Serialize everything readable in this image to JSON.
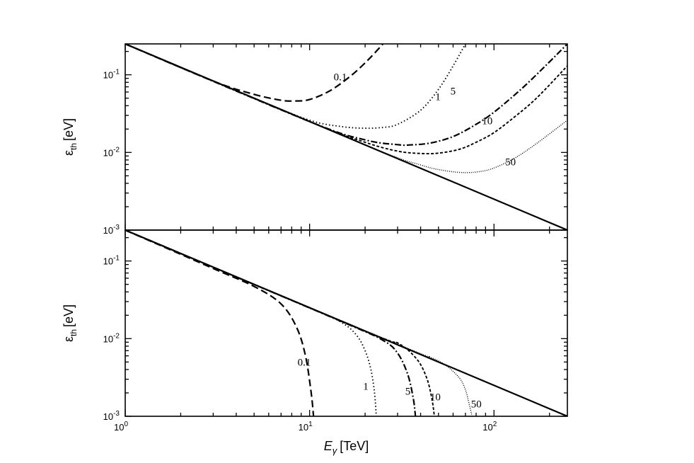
{
  "chart_data": [
    {
      "panel": "top",
      "type": "line",
      "xscale": "log",
      "yscale": "log",
      "xlim": [
        1,
        250
      ],
      "ylim": [
        0.001,
        0.25
      ],
      "ylabel_main": "ε",
      "ylabel_sub": "th",
      "ylabel_unit": "[eV]",
      "ytick_labels": [
        {
          "value": 0.001,
          "base": "10",
          "exp": "-3"
        },
        {
          "value": 0.01,
          "base": "10",
          "exp": "-2"
        },
        {
          "value": 0.1,
          "base": "10",
          "exp": "-1"
        }
      ],
      "baseline": {
        "x": [
          1,
          250
        ],
        "y": [
          0.25,
          0.001
        ]
      },
      "series": [
        {
          "name": "0.1",
          "style": "dashed",
          "x": [
            1,
            3,
            5,
            7,
            8.2,
            10,
            13,
            17,
            21,
            25
          ],
          "y": [
            0.25,
            0.083,
            0.056,
            0.047,
            0.046,
            0.048,
            0.063,
            0.1,
            0.16,
            0.25
          ],
          "label_at": [
            13.5,
            0.085
          ]
        },
        {
          "name": "1",
          "style": "dotted",
          "x": [
            1,
            5,
            10,
            15,
            20,
            25,
            30,
            40,
            50,
            60,
            70
          ],
          "y": [
            0.25,
            0.05,
            0.026,
            0.0215,
            0.0205,
            0.021,
            0.023,
            0.035,
            0.065,
            0.13,
            0.25
          ],
          "label_at": [
            48,
            0.047
          ]
        },
        {
          "name": "5",
          "style": "dashdot",
          "x": [
            1,
            10,
            20,
            30,
            35,
            45,
            60,
            80,
            100,
            140,
            190,
            250
          ],
          "y": [
            0.25,
            0.025,
            0.0145,
            0.0126,
            0.0125,
            0.0132,
            0.016,
            0.023,
            0.033,
            0.065,
            0.13,
            0.25
          ],
          "label_at": [
            58,
            0.056
          ]
        },
        {
          "name": "10",
          "style": "short-dashed",
          "x": [
            1,
            10,
            20,
            30,
            40,
            50,
            65,
            80,
            100,
            130,
            170,
            250
          ],
          "y": [
            0.25,
            0.025,
            0.0135,
            0.0104,
            0.0097,
            0.0098,
            0.011,
            0.0135,
            0.018,
            0.029,
            0.05,
            0.13
          ],
          "label_at": [
            86,
            0.023
          ]
        },
        {
          "name": "50",
          "style": "fine-dotted",
          "x": [
            1,
            20,
            40,
            55,
            70,
            85,
            100,
            130,
            170,
            250
          ],
          "y": [
            0.25,
            0.0125,
            0.0069,
            0.0058,
            0.0055,
            0.0057,
            0.0063,
            0.0085,
            0.013,
            0.026
          ],
          "label_at": [
            115,
            0.0068
          ]
        }
      ]
    },
    {
      "panel": "bottom",
      "type": "line",
      "xscale": "log",
      "yscale": "log",
      "xlim": [
        1,
        250
      ],
      "ylim": [
        0.001,
        0.25
      ],
      "xlabel_main": "E",
      "xlabel_sub": "γ",
      "xlabel_unit": "[TeV]",
      "ylabel_main": "ε",
      "ylabel_sub": "th",
      "ylabel_unit": "[eV]",
      "xtick_labels": [
        {
          "value": 1,
          "base": "10",
          "exp": "0"
        },
        {
          "value": 10,
          "base": "10",
          "exp": "1"
        },
        {
          "value": 100,
          "base": "10",
          "exp": "2"
        }
      ],
      "ytick_labels": [
        {
          "value": 0.001,
          "base": "10",
          "exp": "-3"
        },
        {
          "value": 0.01,
          "base": "10",
          "exp": "-2"
        },
        {
          "value": 0.1,
          "base": "10",
          "exp": "-1"
        }
      ],
      "baseline": {
        "x": [
          1,
          250
        ],
        "y": [
          0.25,
          0.001
        ]
      },
      "series": [
        {
          "name": "0.1",
          "style": "dashed",
          "x": [
            1,
            3,
            5,
            7,
            8.5,
            9.5,
            10.2,
            10.5
          ],
          "y": [
            0.25,
            0.08,
            0.047,
            0.028,
            0.014,
            0.006,
            0.002,
            0.001
          ],
          "label_at": [
            8.6,
            0.0045
          ]
        },
        {
          "name": "1",
          "style": "dotted",
          "x": [
            1,
            10,
            15,
            18,
            20,
            21.5,
            22.5,
            23
          ],
          "y": [
            0.25,
            0.025,
            0.016,
            0.011,
            0.007,
            0.004,
            0.002,
            0.001
          ],
          "label_at": [
            19.5,
            0.0022
          ]
        },
        {
          "name": "5",
          "style": "dashdot",
          "x": [
            1,
            15,
            25,
            30,
            34,
            36.5,
            37.5
          ],
          "y": [
            0.25,
            0.0165,
            0.0095,
            0.0065,
            0.0035,
            0.0017,
            0.001
          ],
          "label_at": [
            33,
            0.0019
          ]
        },
        {
          "name": "10",
          "style": "short-dashed",
          "x": [
            1,
            20,
            30,
            38,
            43,
            46,
            47.5
          ],
          "y": [
            0.25,
            0.0125,
            0.0088,
            0.0055,
            0.0032,
            0.0017,
            0.001
          ],
          "label_at": [
            45,
            0.0016
          ]
        },
        {
          "name": "50",
          "style": "fine-dotted",
          "x": [
            1,
            30,
            45,
            55,
            65,
            70,
            73,
            76
          ],
          "y": [
            0.25,
            0.0085,
            0.0058,
            0.0045,
            0.0031,
            0.0022,
            0.0015,
            0.001
          ],
          "label_at": [
            75,
            0.0013
          ]
        }
      ]
    }
  ]
}
